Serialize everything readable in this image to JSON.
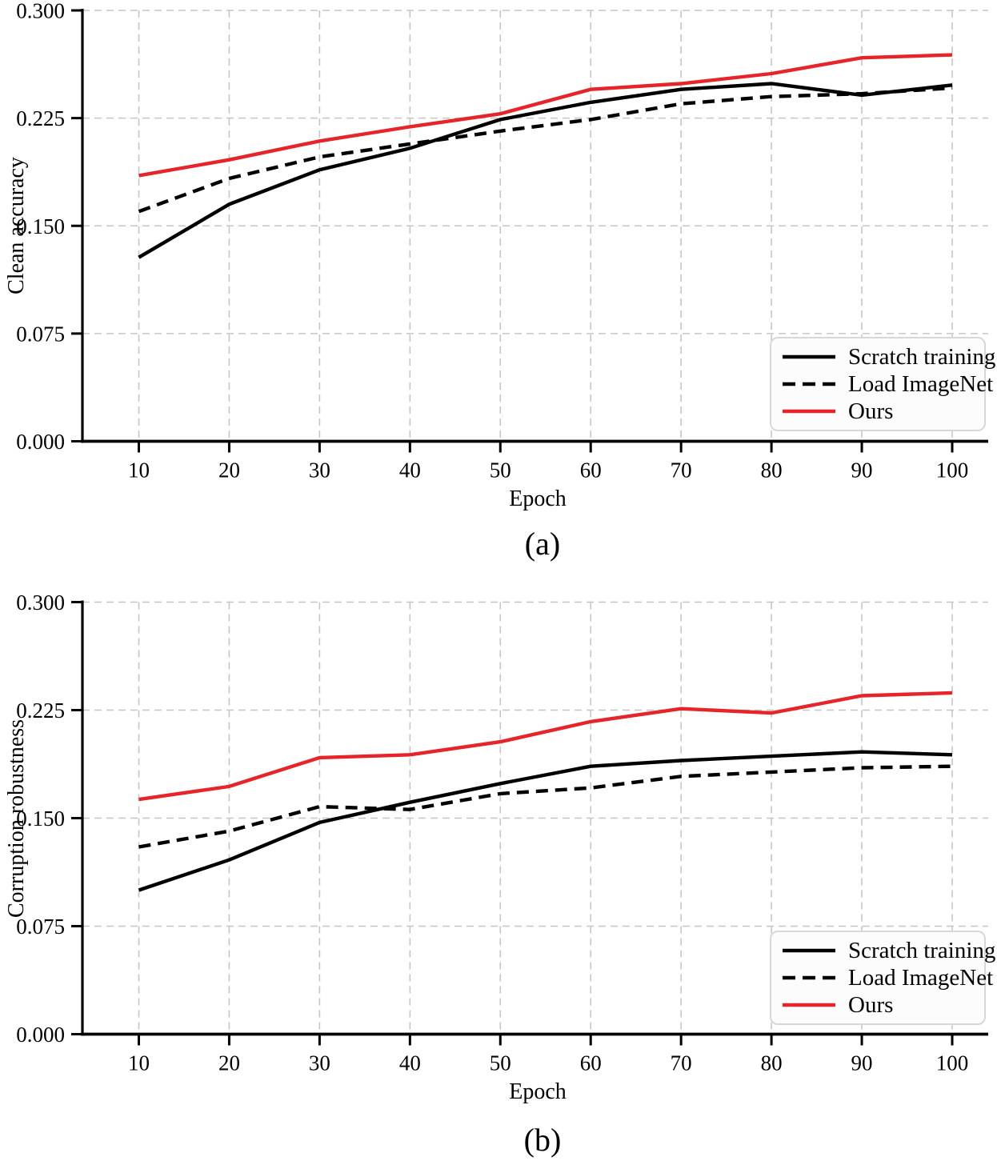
{
  "figure": {
    "background": "#ffffff",
    "grid_color": "#c6c6c6",
    "axis_color": "#000000",
    "red_accent": "#e6252a",
    "black_line": "#000000"
  },
  "chart_data": [
    {
      "id": "a",
      "type": "line",
      "caption": "(a)",
      "xlabel": "Epoch",
      "ylabel": "Clean accuracy",
      "x": [
        10,
        20,
        30,
        40,
        50,
        60,
        70,
        80,
        90,
        100
      ],
      "x_tick_labels": [
        "10",
        "20",
        "30",
        "40",
        "50",
        "60",
        "70",
        "80",
        "90",
        "100"
      ],
      "ylim": [
        0.0,
        0.3
      ],
      "y_ticks": [
        0.0,
        0.075,
        0.15,
        0.225,
        0.3
      ],
      "y_tick_labels": [
        "0.000",
        "0.075",
        "0.150",
        "0.225",
        "0.300"
      ],
      "grid": true,
      "legend_position": "lower right",
      "series": [
        {
          "name": "Scratch training",
          "style": "solid",
          "color": "#000000",
          "values": [
            0.128,
            0.165,
            0.189,
            0.204,
            0.224,
            0.236,
            0.245,
            0.249,
            0.241,
            0.248
          ]
        },
        {
          "name": "Load ImageNet",
          "style": "dashed",
          "color": "#000000",
          "values": [
            0.16,
            0.183,
            0.198,
            0.207,
            0.216,
            0.224,
            0.235,
            0.24,
            0.242,
            0.246
          ]
        },
        {
          "name": "Ours",
          "style": "solid",
          "color": "#e6252a",
          "values": [
            0.185,
            0.196,
            0.209,
            0.219,
            0.228,
            0.245,
            0.249,
            0.256,
            0.267,
            0.269
          ]
        }
      ]
    },
    {
      "id": "b",
      "type": "line",
      "caption": "(b)",
      "xlabel": "Epoch",
      "ylabel": "Corruption robustness",
      "x": [
        10,
        20,
        30,
        40,
        50,
        60,
        70,
        80,
        90,
        100
      ],
      "x_tick_labels": [
        "10",
        "20",
        "30",
        "40",
        "50",
        "60",
        "70",
        "80",
        "90",
        "100"
      ],
      "ylim": [
        0.0,
        0.3
      ],
      "y_ticks": [
        0.0,
        0.075,
        0.15,
        0.225,
        0.3
      ],
      "y_tick_labels": [
        "0.000",
        "0.075",
        "0.150",
        "0.225",
        "0.300"
      ],
      "grid": true,
      "legend_position": "lower right",
      "series": [
        {
          "name": "Scratch training",
          "style": "solid",
          "color": "#000000",
          "values": [
            0.1,
            0.121,
            0.147,
            0.161,
            0.174,
            0.186,
            0.19,
            0.193,
            0.196,
            0.194
          ]
        },
        {
          "name": "Load ImageNet",
          "style": "dashed",
          "color": "#000000",
          "values": [
            0.13,
            0.141,
            0.158,
            0.156,
            0.167,
            0.171,
            0.179,
            0.182,
            0.185,
            0.186
          ]
        },
        {
          "name": "Ours",
          "style": "solid",
          "color": "#e6252a",
          "values": [
            0.163,
            0.172,
            0.192,
            0.194,
            0.203,
            0.217,
            0.226,
            0.223,
            0.235,
            0.237
          ]
        }
      ]
    }
  ]
}
